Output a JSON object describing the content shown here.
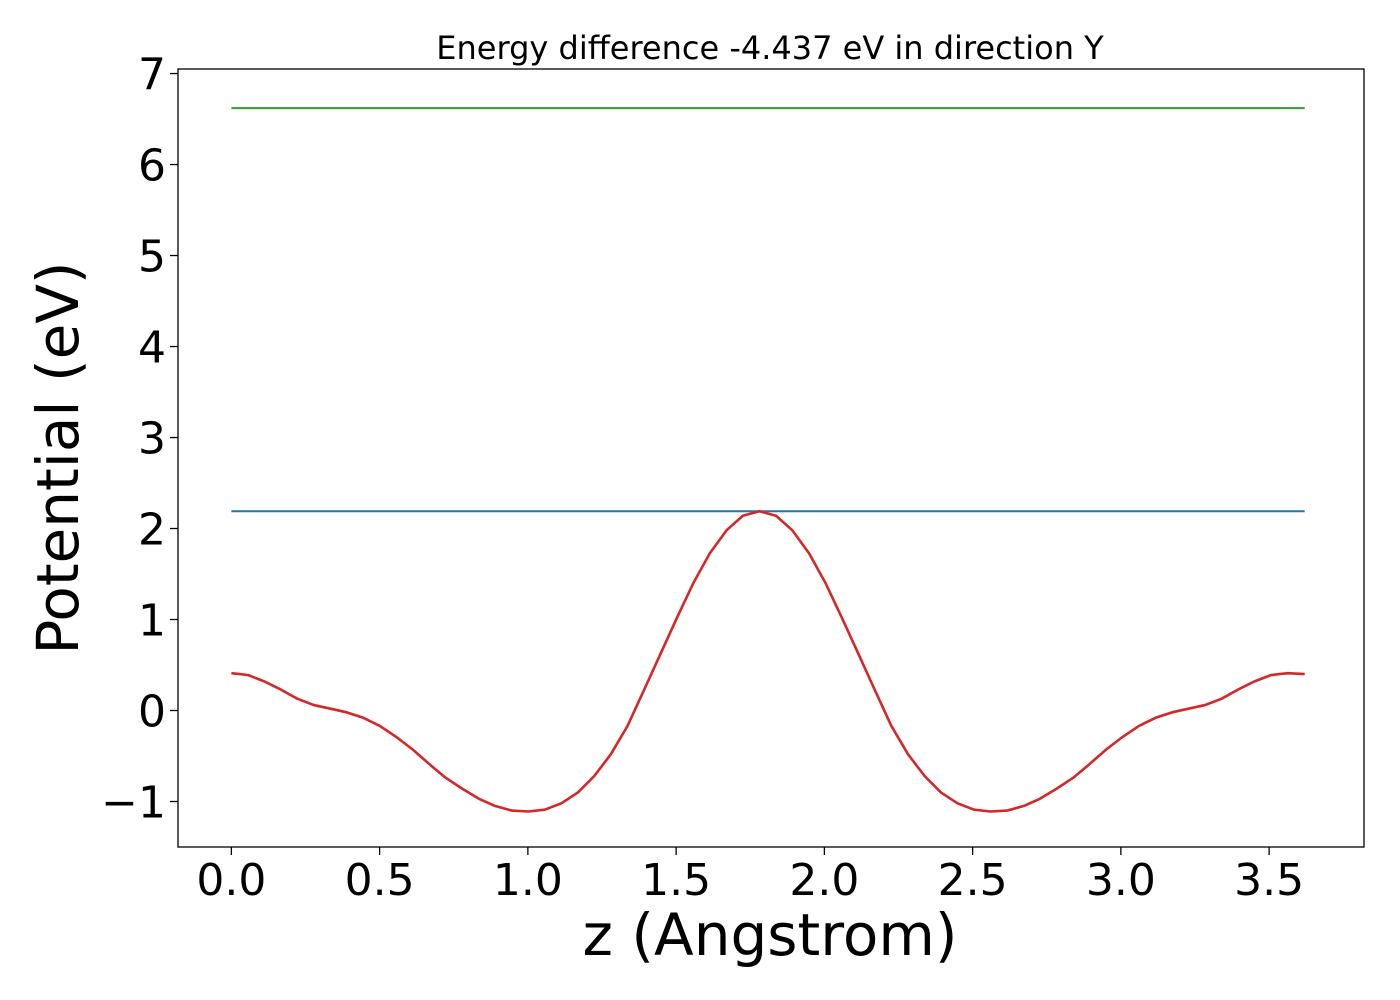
{
  "chart_data": {
    "type": "line",
    "title": "Energy difference -4.437 eV in direction Y",
    "xlabel": "z (Angstrom)",
    "ylabel": "Potential (eV)",
    "xlim": [
      -0.18,
      3.82
    ],
    "ylim": [
      -1.5,
      7.05
    ],
    "xticks": [
      0.0,
      0.5,
      1.0,
      1.5,
      2.0,
      2.5,
      3.0,
      3.5
    ],
    "xtick_labels": [
      "0.0",
      "0.5",
      "1.0",
      "1.5",
      "2.0",
      "2.5",
      "3.0",
      "3.5"
    ],
    "yticks": [
      -1,
      0,
      1,
      2,
      3,
      4,
      5,
      6,
      7
    ],
    "ytick_labels": [
      "−1",
      "0",
      "1",
      "2",
      "3",
      "4",
      "5",
      "6",
      "7"
    ],
    "grid": false,
    "series": [
      {
        "color": "#2ca02c",
        "x": [
          0.0,
          3.62
        ],
        "y": [
          6.62,
          6.62
        ]
      },
      {
        "color": "#1f77b4",
        "x": [
          0.0,
          3.62
        ],
        "y": [
          2.19,
          2.19
        ]
      },
      {
        "color": "#d62728",
        "x": [
          0.0,
          0.056,
          0.111,
          0.167,
          0.222,
          0.278,
          0.334,
          0.389,
          0.445,
          0.501,
          0.556,
          0.612,
          0.668,
          0.723,
          0.779,
          0.835,
          0.89,
          0.946,
          1.002,
          1.057,
          1.113,
          1.169,
          1.224,
          1.28,
          1.336,
          1.391,
          1.447,
          1.503,
          1.558,
          1.614,
          1.67,
          1.725,
          1.781,
          1.837,
          1.892,
          1.948,
          2.004,
          2.059,
          2.115,
          2.171,
          2.226,
          2.282,
          2.338,
          2.393,
          2.449,
          2.505,
          2.56,
          2.616,
          2.672,
          2.727,
          2.783,
          2.839,
          2.894,
          2.95,
          3.006,
          3.061,
          3.117,
          3.173,
          3.228,
          3.284,
          3.34,
          3.395,
          3.451,
          3.507,
          3.562,
          3.62
        ],
        "y": [
          0.41,
          0.39,
          0.32,
          0.23,
          0.13,
          0.06,
          0.02,
          -0.02,
          -0.08,
          -0.17,
          -0.29,
          -0.43,
          -0.59,
          -0.74,
          -0.86,
          -0.97,
          -1.05,
          -1.1,
          -1.11,
          -1.09,
          -1.02,
          -0.9,
          -0.72,
          -0.48,
          -0.17,
          0.22,
          0.62,
          1.02,
          1.4,
          1.73,
          1.98,
          2.14,
          2.19,
          2.14,
          1.98,
          1.73,
          1.4,
          1.02,
          0.62,
          0.22,
          -0.17,
          -0.48,
          -0.72,
          -0.9,
          -1.02,
          -1.09,
          -1.11,
          -1.1,
          -1.05,
          -0.97,
          -0.86,
          -0.74,
          -0.59,
          -0.43,
          -0.29,
          -0.17,
          -0.08,
          -0.02,
          0.02,
          0.06,
          0.13,
          0.23,
          0.32,
          0.39,
          0.41,
          0.4
        ]
      }
    ]
  }
}
